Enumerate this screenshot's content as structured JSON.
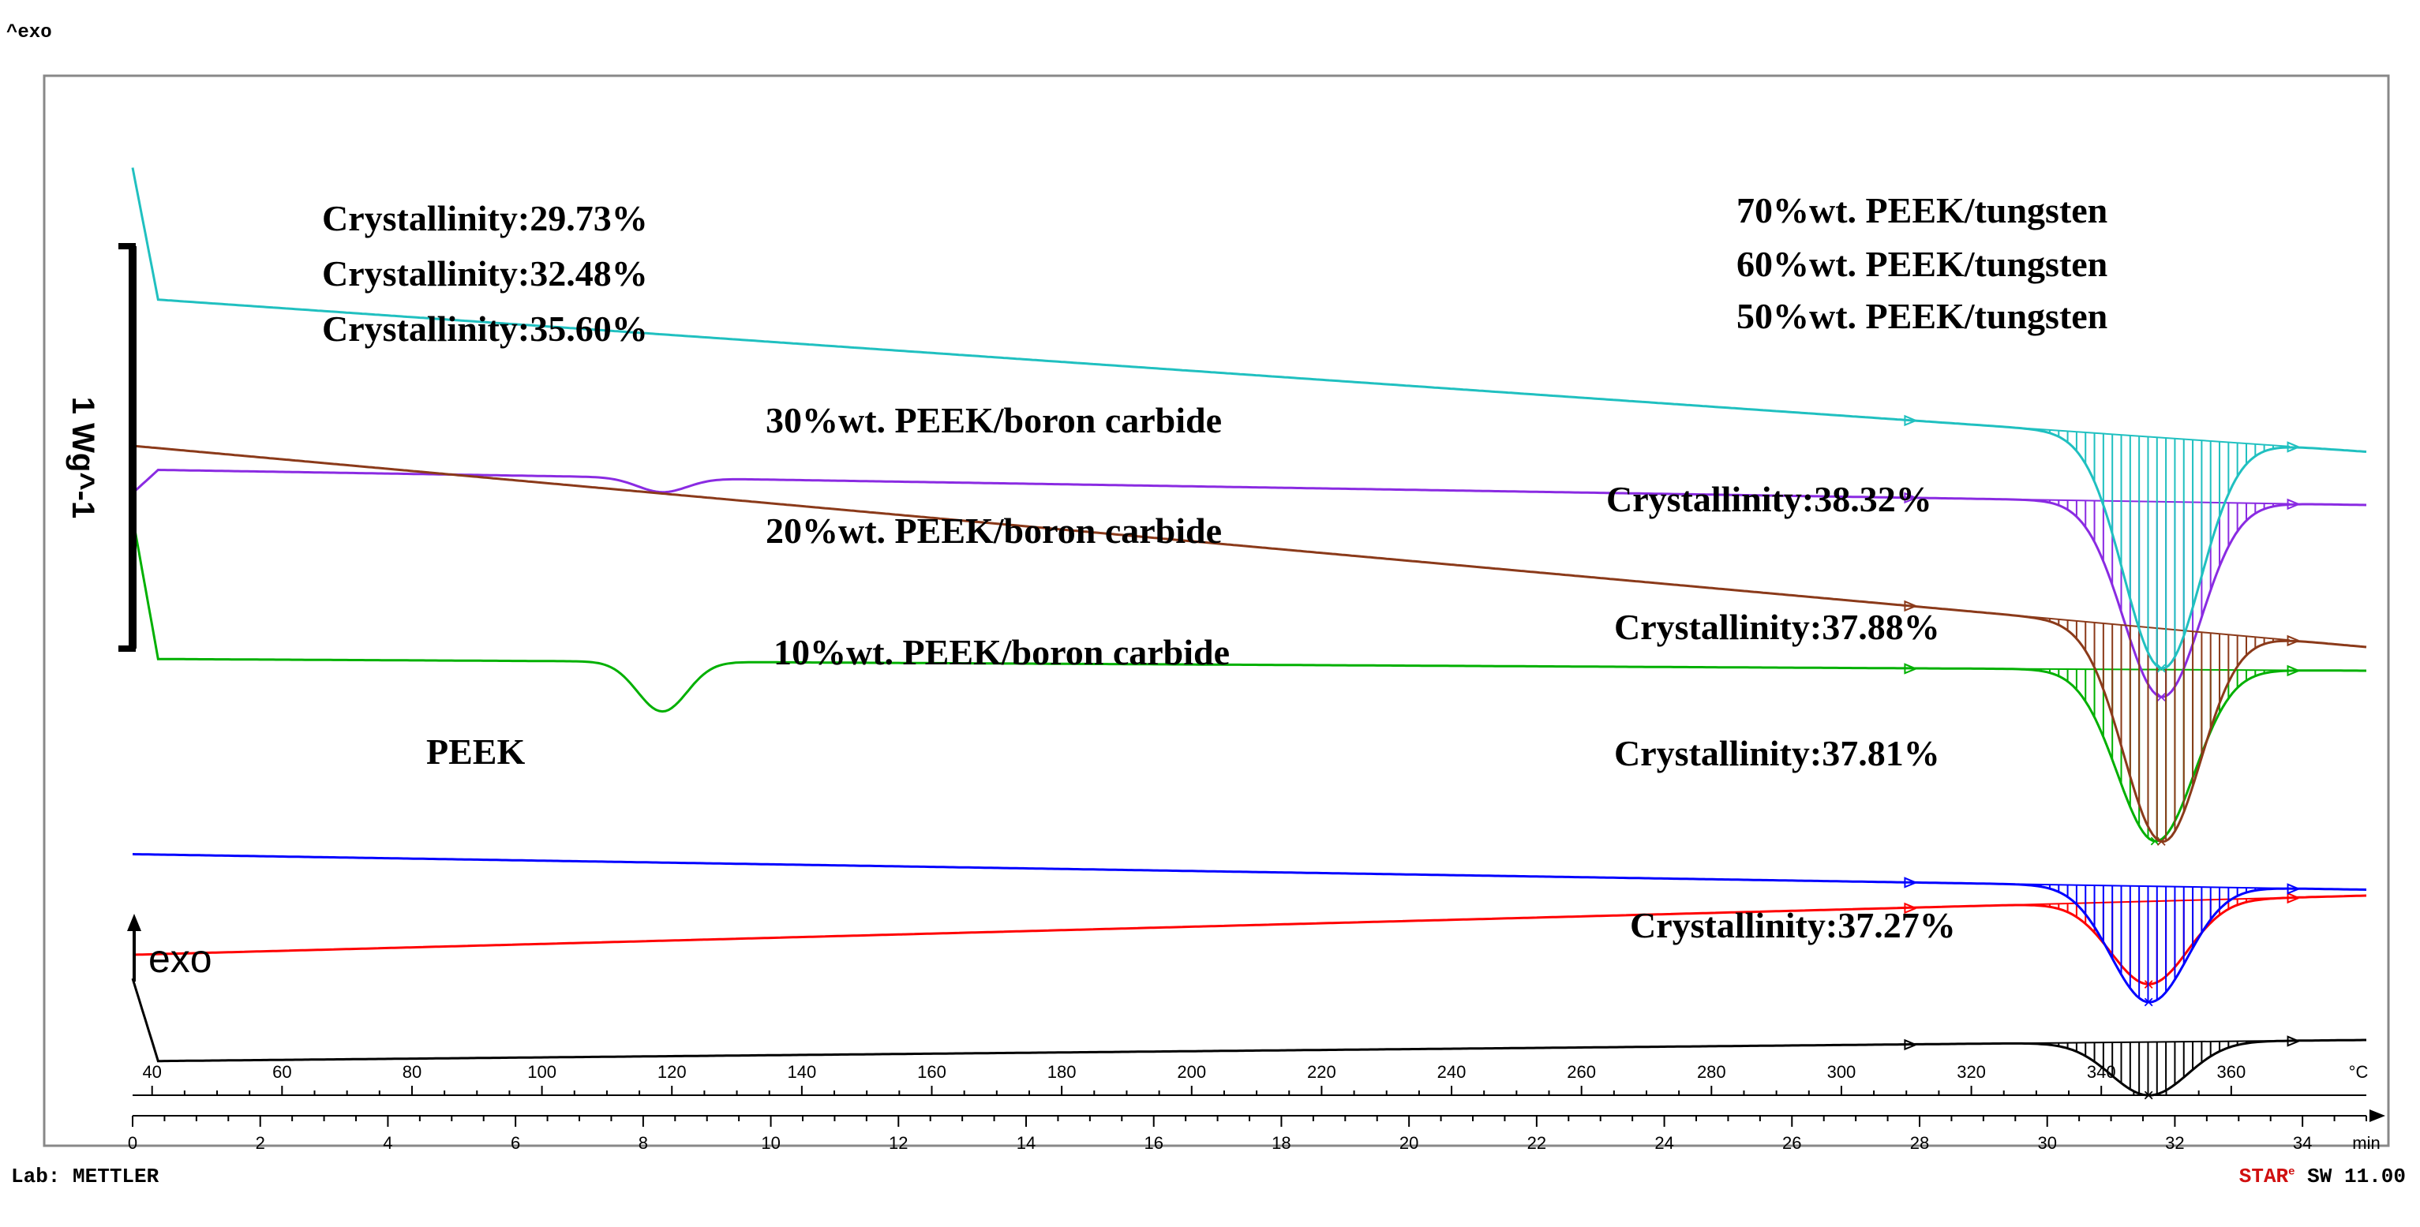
{
  "header": {
    "corner_label": "^exo"
  },
  "footer": {
    "lab": "Lab: METTLER",
    "software_brand": "STAR",
    "software_sup": "e",
    "software_version": "SW 11.00"
  },
  "chart_data": {
    "type": "line",
    "title": "",
    "x_time": {
      "unit": "min",
      "min": 0,
      "max": 35,
      "ticks": [
        "0",
        "2",
        "4",
        "6",
        "8",
        "10",
        "12",
        "14",
        "16",
        "18",
        "20",
        "22",
        "24",
        "26",
        "28",
        "30",
        "32",
        "34"
      ]
    },
    "x_temp": {
      "unit": "°C",
      "ticks": [
        "40",
        "60",
        "80",
        "100",
        "120",
        "140",
        "160",
        "180",
        "200",
        "220",
        "240",
        "260",
        "280",
        "300",
        "320",
        "340",
        "360"
      ]
    },
    "scale_bar_label": "1 Wg^-1",
    "direction_label": "exo",
    "series": [
      {
        "name": "70%wt. PEEK/tungsten",
        "color": "#000000",
        "offset": -7.3,
        "crystallinity": "Crystallinity:29.73%",
        "peak_depth": 0.45,
        "peak_time": 31.6,
        "dip_depth": 0.0,
        "start_spike": 0.7,
        "slope": -0.18
      },
      {
        "name": "60%wt. PEEK/tungsten",
        "color": "#ff0000",
        "offset": -6.4,
        "crystallinity": "Crystallinity:32.48%",
        "peak_depth": 0.7,
        "peak_time": 31.6,
        "dip_depth": 0.0,
        "start_spike": 0.0,
        "slope": -0.5
      },
      {
        "name": "50%wt. PEEK/tungsten",
        "color": "#0000ff",
        "offset": -5.55,
        "crystallinity": "Crystallinity:35.60%",
        "peak_depth": 0.98,
        "peak_time": 31.6,
        "dip_depth": 0.0,
        "start_spike": 0.0,
        "slope": 0.3
      },
      {
        "name": "30%wt. PEEK/boron carbide",
        "color": "#00b000",
        "offset": -3.9,
        "crystallinity": "Crystallinity:38.32%",
        "peak_depth": 1.45,
        "peak_time": 31.7,
        "dip_depth": 0.42,
        "start_spike": 1.2,
        "slope": 0.1
      },
      {
        "name": "20%wt. PEEK/boron carbide",
        "color": "#8a2be2",
        "offset": -2.3,
        "crystallinity": "Crystallinity:37.88%",
        "peak_depth": 1.65,
        "peak_time": 31.8,
        "dip_depth": 0.12,
        "start_spike": -0.2,
        "slope": 0.3
      },
      {
        "name": "10%wt. PEEK/boron carbide",
        "color": "#8b3a1a",
        "offset": -2.1,
        "crystallinity": "Crystallinity:37.81%",
        "peak_depth": 1.8,
        "peak_time": 31.8,
        "dip_depth": 0.0,
        "start_spike": 0.0,
        "slope": 1.7
      },
      {
        "name": "PEEK",
        "color": "#20c0c0",
        "offset": -0.85,
        "crystallinity": "Crystallinity:37.27%",
        "peak_depth": 1.95,
        "peak_time": 31.8,
        "dip_depth": 0.0,
        "start_spike": 1.1,
        "slope": 1.3
      }
    ]
  }
}
